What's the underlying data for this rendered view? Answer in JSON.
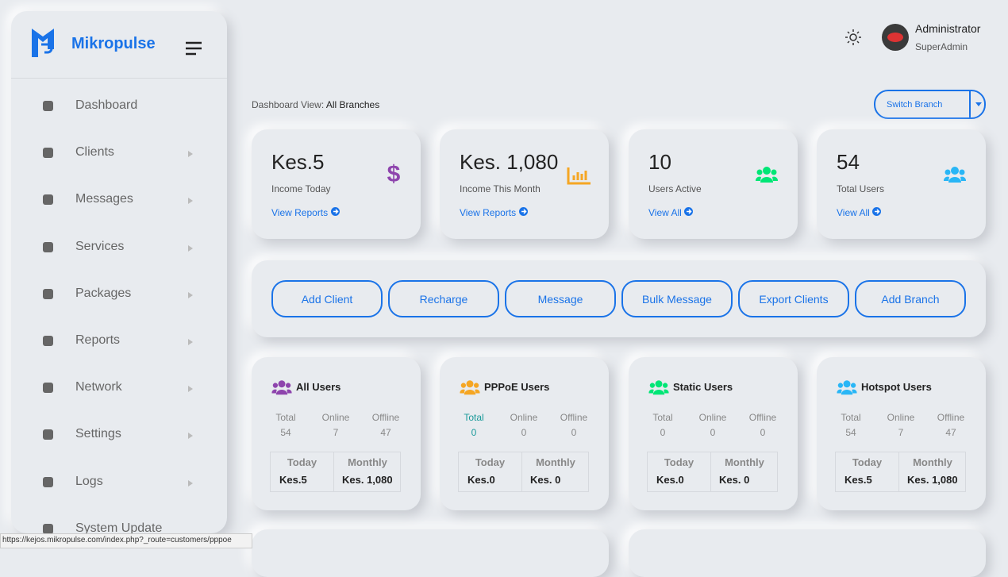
{
  "sidebar": {
    "brand": "Mikropulse",
    "menu": [
      "Dashboard",
      "Clients",
      "Messages",
      "Services",
      "Packages",
      "Reports",
      "Network",
      "Settings",
      "Logs",
      "System Update"
    ]
  },
  "header": {
    "user_name": "Administrator",
    "user_role": "SuperAdmin"
  },
  "dashboard_view": {
    "label": "Dashboard View:",
    "value": "All Branches"
  },
  "switch_branch": "Switch Branch",
  "stats": [
    {
      "value": "Kes.5",
      "label": "Income Today",
      "link": "View Reports"
    },
    {
      "value": "Kes. 1,080",
      "label": "Income This Month",
      "link": "View Reports"
    },
    {
      "value": "10",
      "label": "Users Active",
      "link": "View All"
    },
    {
      "value": "54",
      "label": "Total Users",
      "link": "View All"
    }
  ],
  "actions": [
    "Add Client",
    "Recharge",
    "Message",
    "Bulk Message",
    "Export Clients",
    "Add Branch"
  ],
  "user_cards": [
    {
      "title": "All Users",
      "columns": [
        "Total",
        "Online",
        "Offline"
      ],
      "counts": [
        54,
        7,
        47
      ],
      "today_label": "Today",
      "monthly_label": "Monthly",
      "today": "Kes.5",
      "monthly": "Kes. 1,080"
    },
    {
      "title": "PPPoE Users",
      "columns": [
        "Total",
        "Online",
        "Offline"
      ],
      "counts": [
        0,
        0,
        0
      ],
      "today_label": "Today",
      "monthly_label": "Monthly",
      "today": "Kes.0",
      "monthly": "Kes. 0"
    },
    {
      "title": "Static Users",
      "columns": [
        "Total",
        "Online",
        "Offline"
      ],
      "counts": [
        0,
        0,
        0
      ],
      "today_label": "Today",
      "monthly_label": "Monthly",
      "today": "Kes.0",
      "monthly": "Kes. 0"
    },
    {
      "title": "Hotspot Users",
      "columns": [
        "Total",
        "Online",
        "Offline"
      ],
      "counts": [
        54,
        7,
        47
      ],
      "today_label": "Today",
      "monthly_label": "Monthly",
      "today": "Kes.5",
      "monthly": "Kes. 1,080"
    }
  ],
  "status_url": "https://kejos.mikropulse.com/index.php?_route=customers/pppoe"
}
